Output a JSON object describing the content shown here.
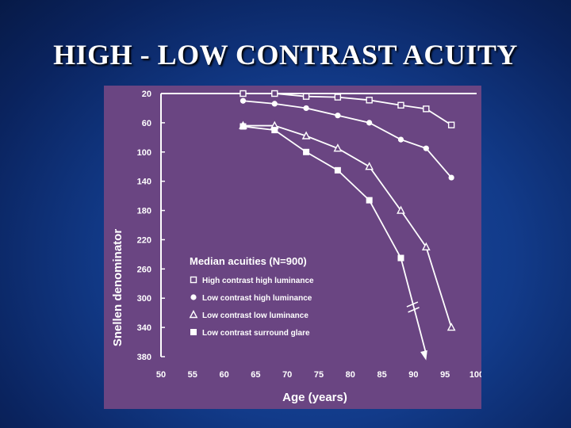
{
  "slide": {
    "title": "HIGH - LOW CONTRAST ACUITY"
  },
  "chart_data": {
    "type": "line",
    "xlabel": "Age (years)",
    "ylabel": "Snellen denominator",
    "xlim": [
      50,
      100
    ],
    "ylim": [
      20,
      380
    ],
    "y_inverted": true,
    "x_ticks": [
      50,
      55,
      60,
      65,
      70,
      75,
      80,
      85,
      90,
      95,
      100
    ],
    "y_ticks": [
      20,
      60,
      100,
      140,
      180,
      220,
      260,
      300,
      340,
      380
    ],
    "grid": false,
    "legend": {
      "title": "Median acuities (N=900)",
      "position": "bottom-left"
    },
    "series": [
      {
        "name": "High contrast high luminance",
        "marker": "open-square",
        "x": [
          63,
          68,
          73,
          78,
          83,
          88,
          92,
          96
        ],
        "y": [
          20,
          20,
          24,
          25,
          29,
          36,
          41,
          63
        ]
      },
      {
        "name": "Low contrast high luminance",
        "marker": "filled-circle",
        "x": [
          63,
          68,
          73,
          78,
          83,
          88,
          92,
          96
        ],
        "y": [
          30,
          34,
          40,
          50,
          60,
          83,
          95,
          135
        ]
      },
      {
        "name": "Low contrast low luminance",
        "marker": "open-triangle",
        "x": [
          63,
          68,
          73,
          78,
          83,
          88,
          92,
          96
        ],
        "y": [
          64,
          64,
          78,
          95,
          120,
          180,
          230,
          340
        ]
      },
      {
        "name": "Low contrast surround glare",
        "marker": "filled-square",
        "x": [
          63,
          68,
          73,
          78,
          83,
          88,
          92
        ],
        "y": [
          65,
          70,
          100,
          125,
          166,
          245,
          385
        ]
      }
    ]
  }
}
